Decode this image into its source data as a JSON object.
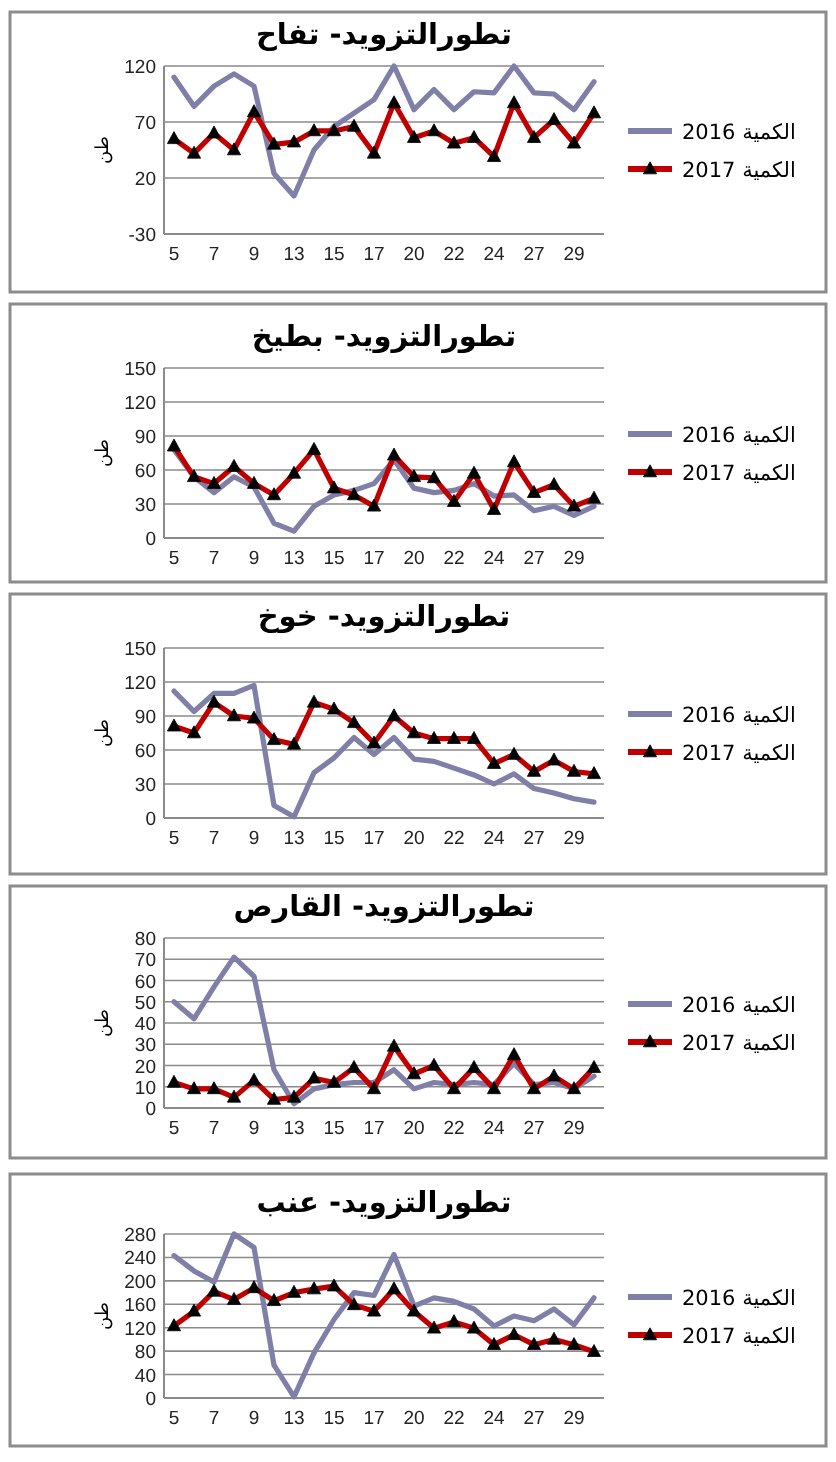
{
  "chart_data": [
    {
      "type": "line",
      "title": "تطورالتزويد- تفاح",
      "ylabel": "طن",
      "categories": [
        "5",
        null,
        "7",
        null,
        "9",
        null,
        "13",
        null,
        "15",
        null,
        "17",
        null,
        "20",
        null,
        "22",
        null,
        "24",
        null,
        "27",
        null,
        "29",
        null
      ],
      "ylim": [
        -30,
        120
      ],
      "yticks": [
        -30,
        20,
        70,
        120
      ],
      "grid": "y",
      "legend": "right",
      "series": [
        {
          "name": "الكمية 2016",
          "color": "#7f7fa8",
          "marker": "none",
          "values": [
            110,
            84,
            102,
            113,
            102,
            24,
            4,
            45,
            66,
            78,
            90,
            120,
            81,
            99,
            81,
            97,
            96,
            120,
            96,
            95,
            81,
            106
          ]
        },
        {
          "name": "الكمية 2017",
          "color": "#c00000",
          "marker": "triangle",
          "values": [
            55,
            42,
            60,
            45,
            79,
            50,
            52,
            62,
            62,
            66,
            42,
            87,
            56,
            62,
            51,
            56,
            39,
            87,
            56,
            72,
            51,
            78
          ]
        }
      ]
    },
    {
      "type": "line",
      "title": "تطورالتزويد- بطيخ",
      "ylabel": "طن",
      "categories": [
        "5",
        null,
        "7",
        null,
        "9",
        null,
        "13",
        null,
        "15",
        null,
        "17",
        null,
        "20",
        null,
        "22",
        null,
        "24",
        null,
        "27",
        null,
        "29",
        null
      ],
      "ylim": [
        0,
        150
      ],
      "yticks": [
        0,
        30,
        60,
        90,
        120,
        150
      ],
      "grid": "y",
      "legend": "right",
      "series": [
        {
          "name": "الكمية 2016",
          "color": "#7f7fa8",
          "marker": "none",
          "values": [
            78,
            54,
            40,
            54,
            45,
            13,
            6,
            28,
            38,
            42,
            48,
            69,
            44,
            40,
            42,
            48,
            37,
            38,
            24,
            28,
            20,
            28
          ]
        },
        {
          "name": "الكمية 2017",
          "color": "#c00000",
          "marker": "triangle",
          "values": [
            81,
            54,
            48,
            63,
            48,
            38,
            57,
            78,
            44,
            38,
            28,
            73,
            54,
            53,
            32,
            57,
            25,
            67,
            40,
            47,
            28,
            35
          ]
        }
      ]
    },
    {
      "type": "line",
      "title": "تطورالتزويد- خوخ",
      "ylabel": "طن",
      "categories": [
        "5",
        null,
        "7",
        null,
        "9",
        null,
        "13",
        null,
        "15",
        null,
        "17",
        null,
        "20",
        null,
        "22",
        null,
        "24",
        null,
        "27",
        null,
        "29",
        null
      ],
      "ylim": [
        0,
        150
      ],
      "yticks": [
        0,
        30,
        60,
        90,
        120,
        150
      ],
      "grid": "y",
      "legend": "right",
      "series": [
        {
          "name": "الكمية 2016",
          "color": "#7f7fa8",
          "marker": "none",
          "values": [
            112,
            94,
            110,
            110,
            117,
            11,
            1,
            40,
            53,
            71,
            56,
            71,
            52,
            50,
            44,
            38,
            30,
            39,
            26,
            22,
            17,
            14
          ]
        },
        {
          "name": "الكمية 2017",
          "color": "#c00000",
          "marker": "triangle",
          "values": [
            81,
            75,
            102,
            90,
            88,
            69,
            65,
            102,
            96,
            84,
            66,
            90,
            75,
            70,
            70,
            70,
            48,
            56,
            41,
            51,
            41,
            39
          ]
        }
      ]
    },
    {
      "type": "line",
      "title": "تطورالتزويد- القارص",
      "ylabel": "طن",
      "categories": [
        "5",
        null,
        "7",
        null,
        "9",
        null,
        "13",
        null,
        "15",
        null,
        "17",
        null,
        "20",
        null,
        "22",
        null,
        "24",
        null,
        "27",
        null,
        "29",
        null
      ],
      "ylim": [
        0,
        80
      ],
      "yticks": [
        0,
        10,
        20,
        30,
        40,
        50,
        60,
        70,
        80
      ],
      "grid": "y",
      "legend": "right",
      "series": [
        {
          "name": "الكمية 2016",
          "color": "#7f7fa8",
          "marker": "none",
          "values": [
            50,
            42,
            57,
            71,
            62,
            18,
            2,
            9,
            11,
            12,
            12,
            18,
            9,
            12,
            11,
            12,
            11,
            21,
            11,
            12,
            9,
            15
          ]
        },
        {
          "name": "الكمية 2017",
          "color": "#c00000",
          "marker": "triangle",
          "values": [
            12,
            9,
            9,
            5,
            13,
            4,
            5,
            14,
            12,
            19,
            9,
            29,
            16,
            20,
            9,
            19,
            9,
            25,
            9,
            15,
            9,
            19
          ]
        }
      ]
    },
    {
      "type": "line",
      "title": "تطورالتزويد- عنب",
      "ylabel": "طن",
      "categories": [
        "5",
        null,
        "7",
        null,
        "9",
        null,
        "13",
        null,
        "15",
        null,
        "17",
        null,
        "20",
        null,
        "22",
        null,
        "24",
        null,
        "27",
        null,
        "29",
        null
      ],
      "ylim": [
        0,
        280
      ],
      "yticks": [
        0,
        40,
        80,
        120,
        160,
        200,
        240,
        280
      ],
      "grid": "y",
      "legend": "right",
      "series": [
        {
          "name": "الكمية 2016",
          "color": "#7f7fa8",
          "marker": "none",
          "values": [
            243,
            217,
            198,
            280,
            257,
            56,
            2,
            77,
            134,
            180,
            175,
            245,
            157,
            171,
            165,
            152,
            123,
            140,
            132,
            152,
            125,
            171
          ]
        },
        {
          "name": "الكمية 2017",
          "color": "#c00000",
          "marker": "triangle",
          "values": [
            123,
            148,
            182,
            168,
            188,
            166,
            180,
            186,
            191,
            159,
            148,
            186,
            148,
            119,
            130,
            119,
            91,
            108,
            91,
            100,
            91,
            79
          ]
        }
      ]
    }
  ]
}
